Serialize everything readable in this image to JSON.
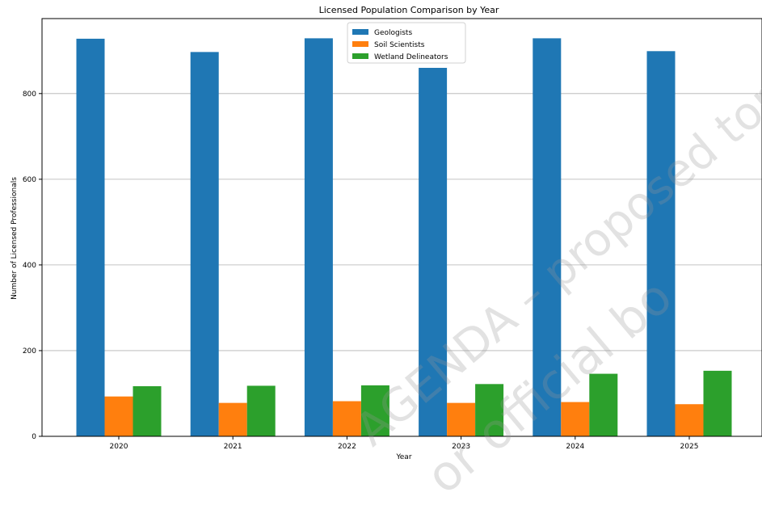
{
  "chart_data": {
    "type": "bar",
    "title": "Licensed Population Comparison by Year",
    "xlabel": "Year",
    "ylabel": "Number of Licensed Professionals",
    "categories": [
      "2020",
      "2021",
      "2022",
      "2023",
      "2024",
      "2025"
    ],
    "series": [
      {
        "name": "Geologists",
        "color": "#1f77b4",
        "values": [
          928,
          897,
          929,
          860,
          929,
          899
        ]
      },
      {
        "name": "Soil Scientists",
        "color": "#ff7f0e",
        "values": [
          93,
          78,
          82,
          78,
          80,
          75
        ]
      },
      {
        "name": "Wetland Delineators",
        "color": "#2ca02c",
        "values": [
          117,
          118,
          119,
          122,
          146,
          153
        ]
      }
    ],
    "yticks": [
      0,
      200,
      400,
      600,
      800
    ],
    "ylim": [
      0,
      975
    ],
    "grid": "y",
    "legend_position": "top-center"
  },
  "watermark": {
    "line1": "AGENDA – proposed topics for",
    "line2": "or official bo"
  }
}
